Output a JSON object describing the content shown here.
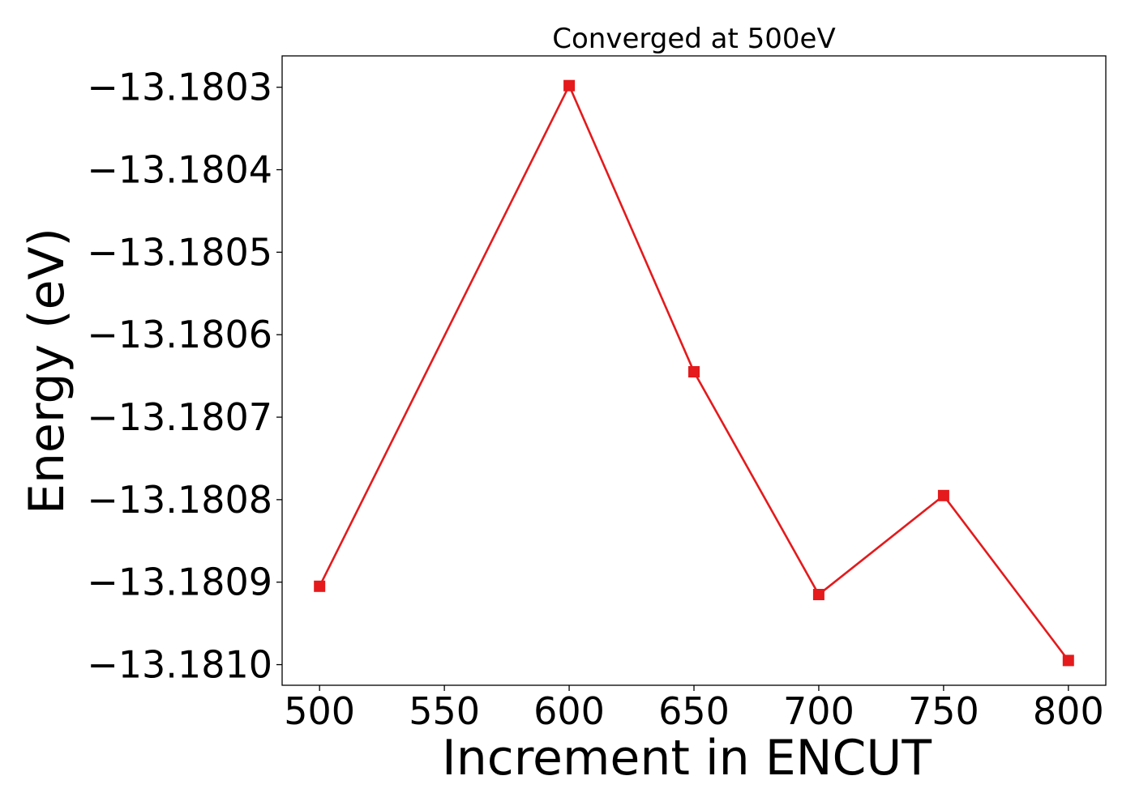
{
  "chart_data": {
    "type": "line",
    "title": "Converged at 500eV",
    "xlabel": "Increment in ENCUT",
    "ylabel": "Energy (eV)",
    "x": [
      500,
      600,
      650,
      700,
      750,
      800
    ],
    "series": [
      {
        "values": [
          -13.180905,
          -13.180298,
          -13.180645,
          -13.180915,
          -13.180795,
          -13.180995
        ],
        "color": "#e41a1c",
        "marker": "square"
      }
    ],
    "xticks": [
      500,
      550,
      600,
      650,
      700,
      750,
      800
    ],
    "xtick_labels": [
      "500",
      "550",
      "600",
      "650",
      "700",
      "750",
      "800"
    ],
    "yticks": [
      -13.1803,
      -13.1804,
      -13.1805,
      -13.1806,
      -13.1807,
      -13.1808,
      -13.1809,
      -13.181
    ],
    "ytick_labels": [
      "−13.1803",
      "−13.1804",
      "−13.1805",
      "−13.1806",
      "−13.1807",
      "−13.1808",
      "−13.1809",
      "−13.1810"
    ],
    "xlim": [
      485,
      815
    ],
    "ylim": [
      -13.181025,
      -13.180262
    ],
    "grid": false,
    "legend": "none"
  }
}
